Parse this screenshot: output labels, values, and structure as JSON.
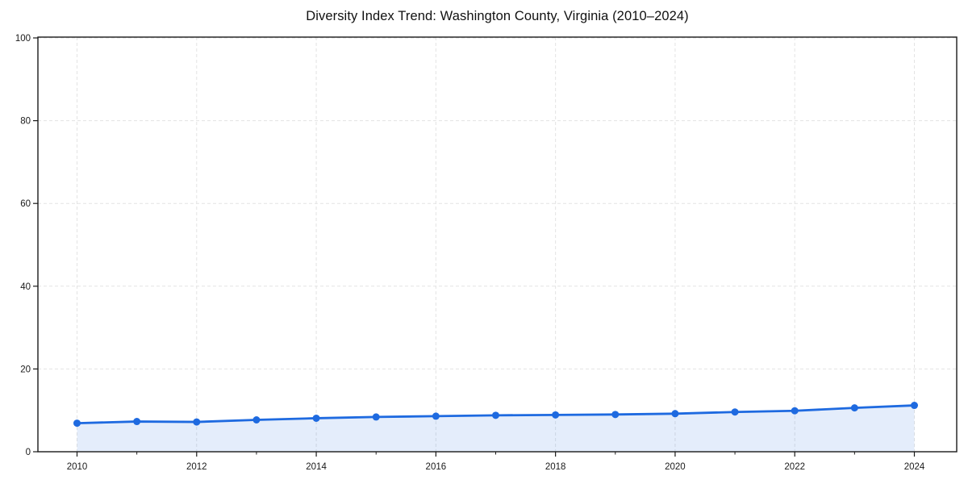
{
  "title": "Diversity Index Trend: Washington County, Virginia (2010–2024)",
  "chart_data": {
    "type": "line",
    "title": "Diversity Index Trend: Washington County, Virginia (2010–2024)",
    "xlabel": "",
    "ylabel": "",
    "x": [
      2010,
      2011,
      2012,
      2013,
      2014,
      2015,
      2016,
      2017,
      2018,
      2019,
      2020,
      2021,
      2022,
      2023,
      2024
    ],
    "series": [
      {
        "name": "Diversity Index",
        "values": [
          6.9,
          7.3,
          7.2,
          7.7,
          8.1,
          8.4,
          8.6,
          8.8,
          8.9,
          9.0,
          9.2,
          9.6,
          9.9,
          10.6,
          11.2
        ]
      }
    ],
    "xlim": [
      2010,
      2024
    ],
    "ylim": [
      0,
      100
    ],
    "yticks": [
      0,
      20,
      40,
      60,
      80,
      100
    ],
    "xticks_major": [
      2010,
      2012,
      2014,
      2016,
      2018,
      2020,
      2022,
      2024
    ],
    "xticks_minor": [
      2011,
      2013,
      2015,
      2017,
      2019,
      2021,
      2023
    ],
    "grid": true,
    "grid_style": "dashed",
    "legend": "none",
    "area_fill": true,
    "marker": "circle",
    "colors": {
      "line": "#1e6ae0",
      "marker": "#1e6ae0",
      "fill": "rgba(30, 106, 224, 0.12)",
      "grid": "#e3e3e3",
      "spine": "#1a1a1a",
      "tick_text": "#1a1a1a",
      "background": "#ffffff"
    }
  }
}
